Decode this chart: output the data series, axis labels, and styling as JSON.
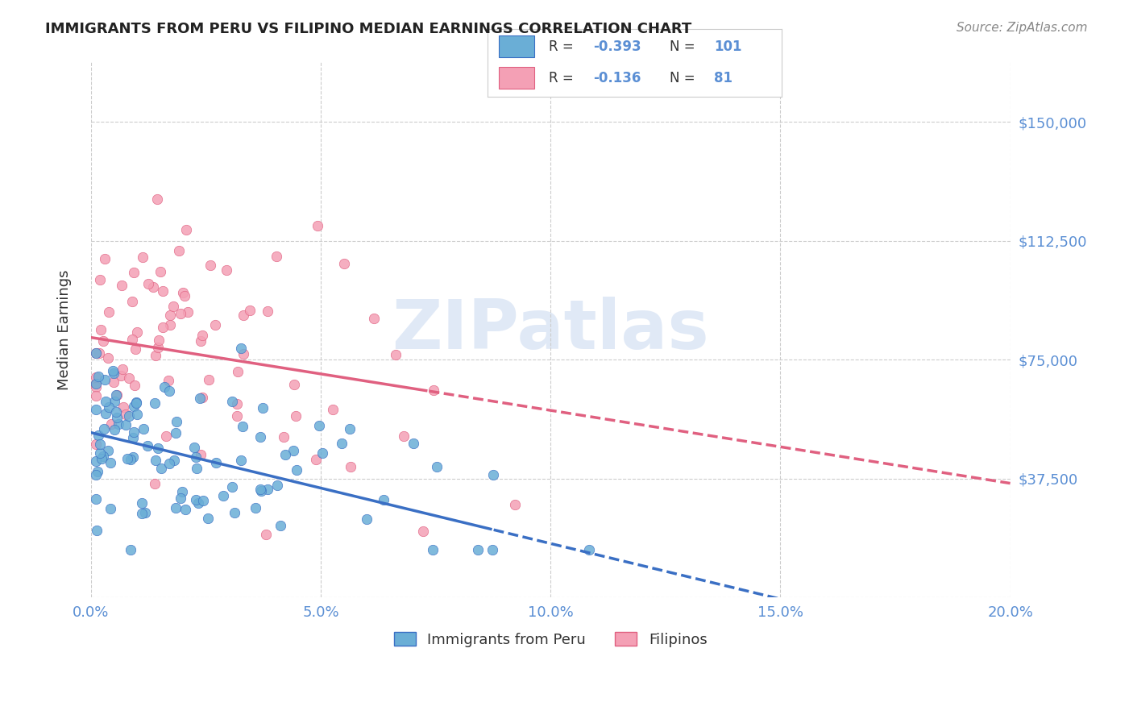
{
  "title": "IMMIGRANTS FROM PERU VS FILIPINO MEDIAN EARNINGS CORRELATION CHART",
  "source": "Source: ZipAtlas.com",
  "xlabel": "",
  "ylabel": "Median Earnings",
  "xlim": [
    0.0,
    0.2
  ],
  "ylim": [
    0,
    168750
  ],
  "yticks": [
    0,
    37500,
    75000,
    112500,
    150000
  ],
  "ytick_labels": [
    "",
    "$37,500",
    "$75,000",
    "$112,500",
    "$150,000"
  ],
  "xticks": [
    0.0,
    0.05,
    0.1,
    0.15,
    0.2
  ],
  "xtick_labels": [
    "0.0%",
    "5.0%",
    "10.0%",
    "15.0%",
    "20.0%"
  ],
  "blue_color": "#6aaed6",
  "pink_color": "#f4a0b5",
  "blue_line_color": "#3a6fc4",
  "pink_line_color": "#e06080",
  "axis_color": "#5b8fd4",
  "legend_r1": "R = -0.393",
  "legend_n1": "N = 101",
  "legend_r2": "R = -0.136",
  "legend_n2": "N =  81",
  "legend_label1": "Immigrants from Peru",
  "legend_label2": "Filipinos",
  "watermark": "ZIPatlas",
  "blue_R": -0.393,
  "blue_N": 101,
  "pink_R": -0.136,
  "pink_N": 81,
  "blue_intercept": 52000,
  "blue_slope": -350000,
  "pink_intercept": 82000,
  "pink_slope": -230000,
  "background_color": "#ffffff",
  "grid_color": "#cccccc"
}
